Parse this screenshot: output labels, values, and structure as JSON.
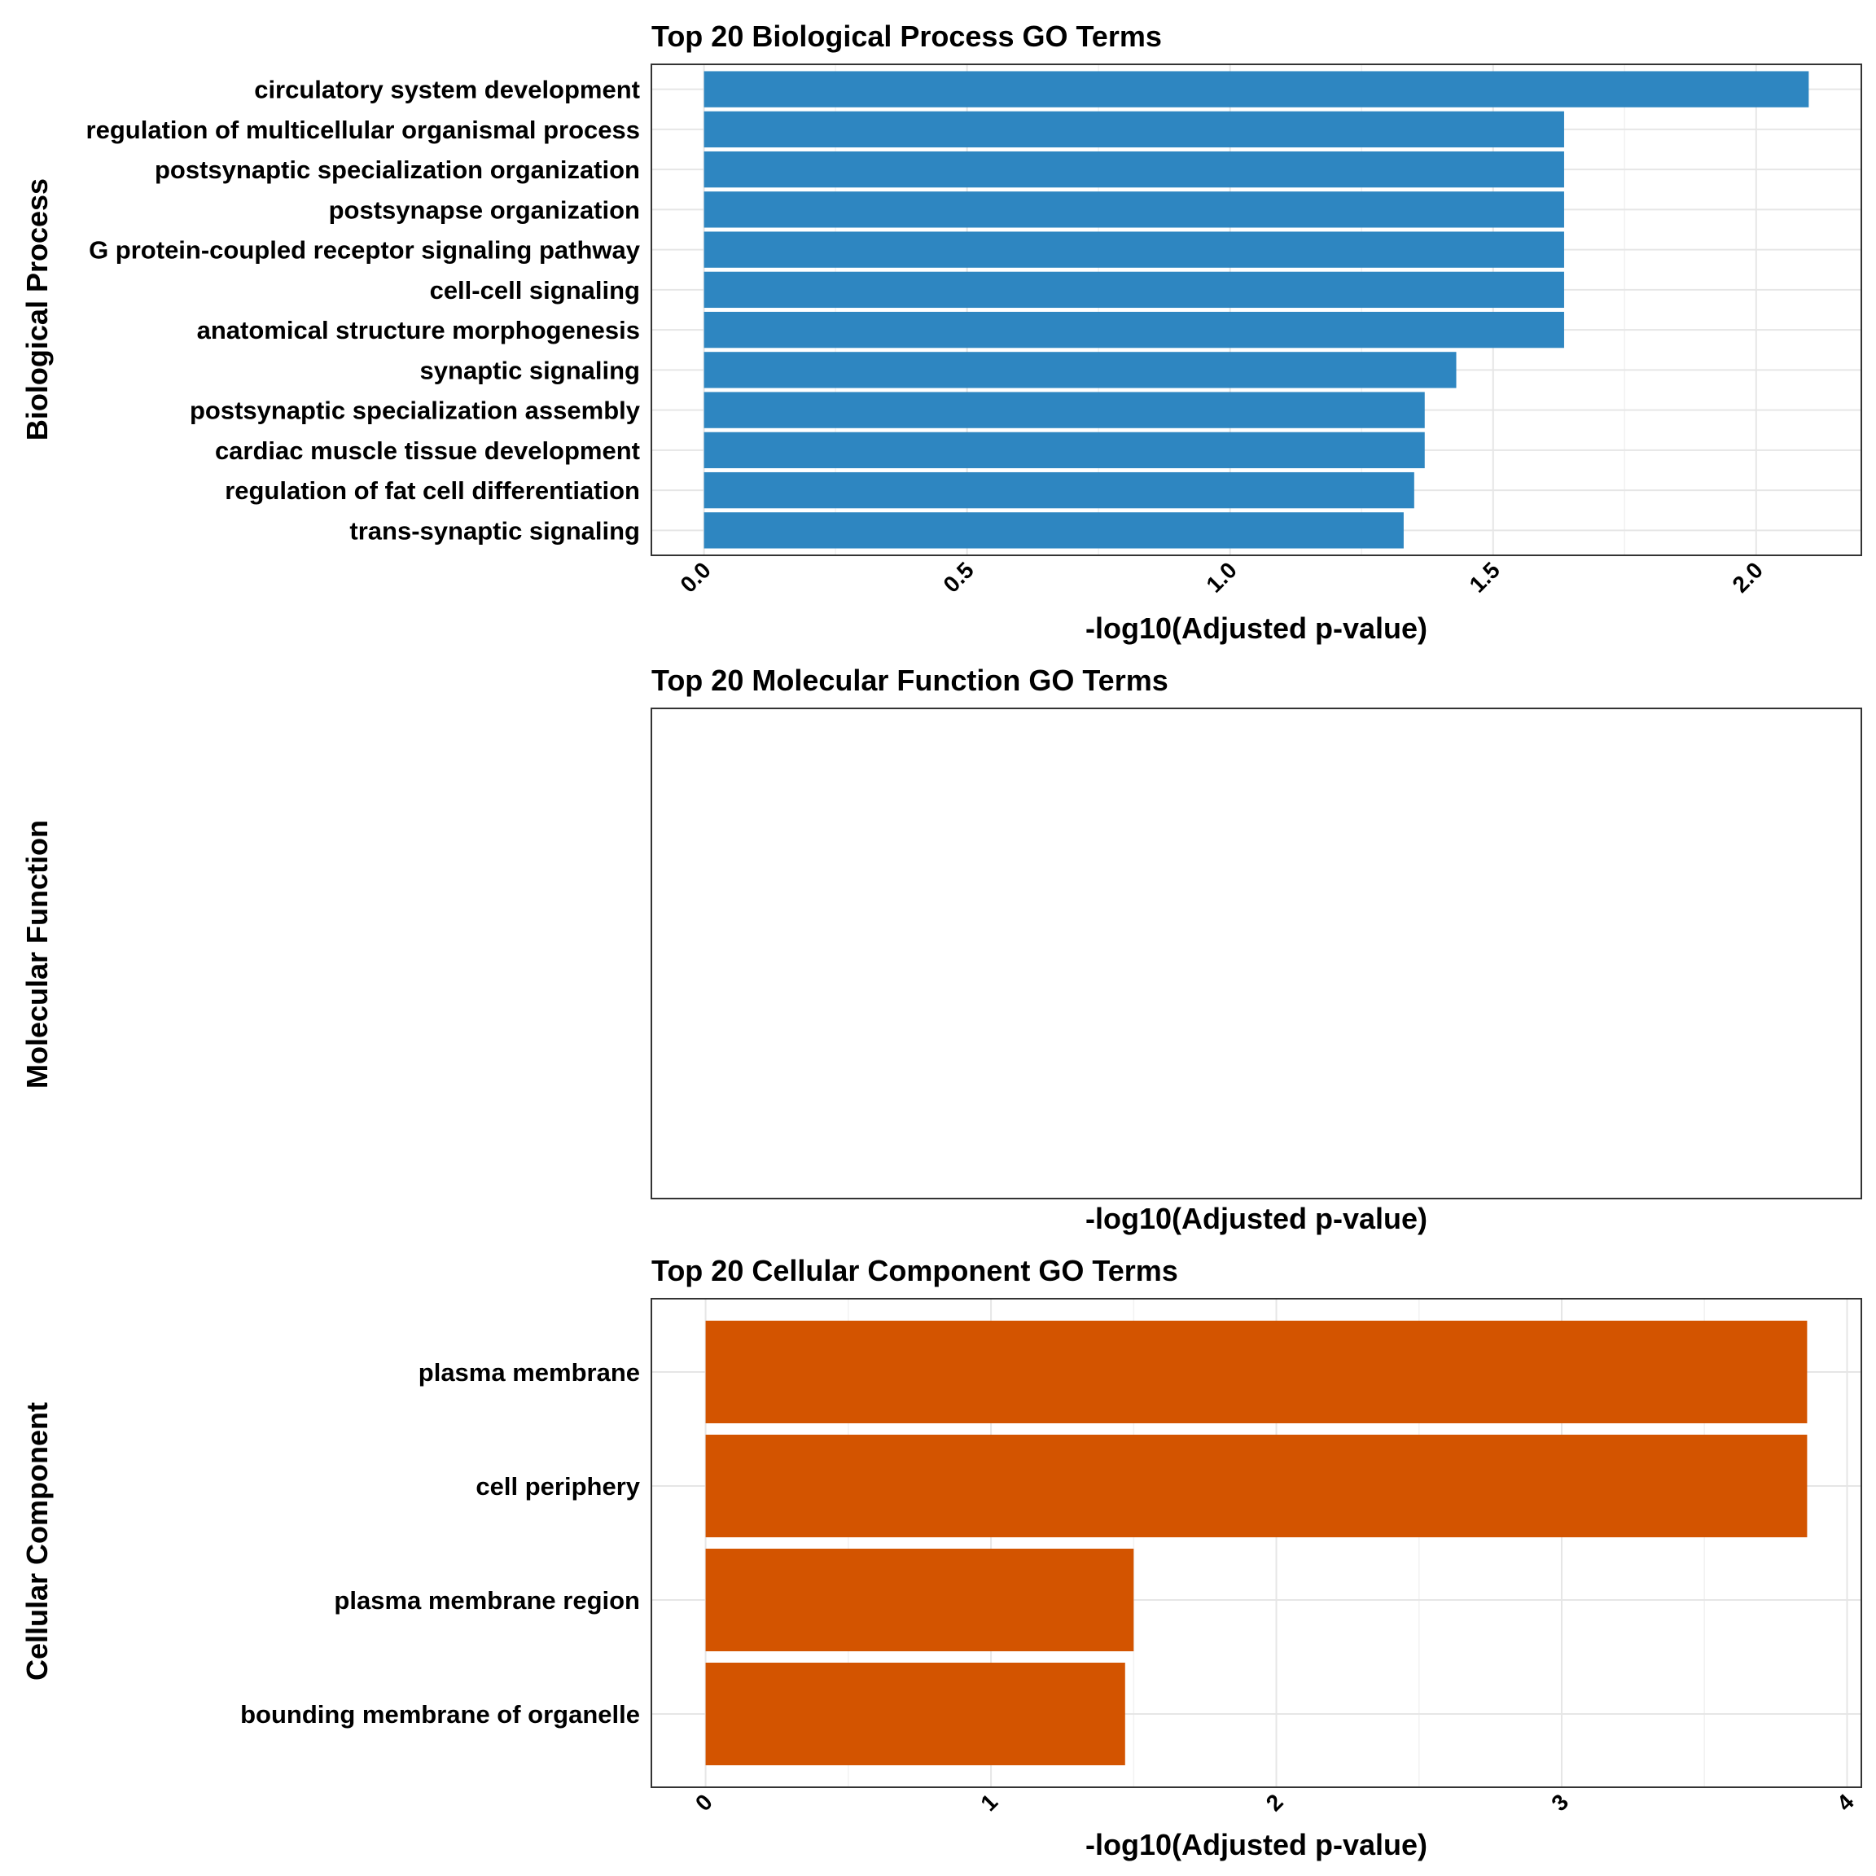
{
  "chart_data": [
    {
      "type": "bar",
      "orientation": "horizontal",
      "title": "Top 20 Biological Process GO Terms",
      "ylabel": "Biological Process",
      "xlabel": "-log10(Adjusted p-value)",
      "color": "#2E86C1",
      "xlim": [
        -0.1,
        2.2
      ],
      "xticks": [
        0.0,
        0.5,
        1.0,
        1.5,
        2.0
      ],
      "xtick_labels": [
        "0.0",
        "0.5",
        "1.0",
        "1.5",
        "2.0"
      ],
      "grid": true,
      "categories": [
        "circulatory system development",
        "regulation of multicellular organismal process",
        "postsynaptic specialization organization",
        "postsynapse organization",
        "G protein-coupled receptor signaling pathway",
        "cell-cell signaling",
        "anatomical structure morphogenesis",
        "synaptic signaling",
        "postsynaptic specialization assembly",
        "cardiac muscle tissue development",
        "regulation of fat cell differentiation",
        "trans-synaptic signaling"
      ],
      "values": [
        2.1,
        1.635,
        1.635,
        1.635,
        1.635,
        1.635,
        1.635,
        1.43,
        1.37,
        1.37,
        1.35,
        1.33
      ]
    },
    {
      "type": "bar",
      "orientation": "horizontal",
      "title": "Top 20 Molecular Function GO Terms",
      "ylabel": "Molecular Function",
      "xlabel": "-log10(Adjusted p-value)",
      "color": "#2E86C1",
      "grid": false,
      "categories": [],
      "values": []
    },
    {
      "type": "bar",
      "orientation": "horizontal",
      "title": "Top 20 Cellular Component GO Terms",
      "ylabel": "Cellular Component",
      "xlabel": "-log10(Adjusted p-value)",
      "color": "#D35400",
      "xlim": [
        -0.19,
        4.05
      ],
      "xticks": [
        0,
        1,
        2,
        3,
        4
      ],
      "xtick_labels": [
        "0",
        "1",
        "2",
        "3",
        "4"
      ],
      "grid": true,
      "categories": [
        "plasma membrane",
        "cell periphery",
        "plasma membrane region",
        "bounding membrane of organelle"
      ],
      "values": [
        3.86,
        3.86,
        1.5,
        1.47
      ]
    }
  ]
}
